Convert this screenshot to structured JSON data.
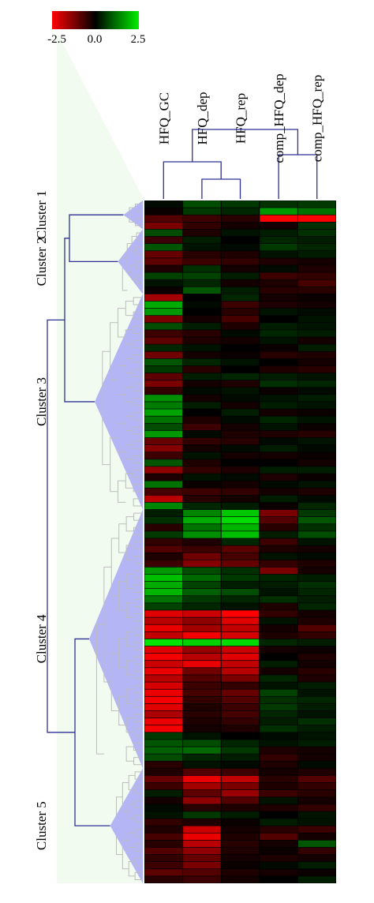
{
  "chart_data": {
    "type": "heatmap",
    "title": "",
    "colorbar": {
      "min": -2.5,
      "max": 2.5,
      "tick_labels": [
        "-2.5",
        "0.0",
        "2.5"
      ],
      "colors": {
        "low": "#ff0000",
        "mid": "#000000",
        "high": "#00ee00"
      }
    },
    "columns": [
      "HFQ_GC",
      "HFQ_dep",
      "HFQ_rep",
      "comp_HFQ_dep",
      "comp_HFQ_rep"
    ],
    "clusters": [
      {
        "label": "Cluster 1",
        "rows": [
          0,
          3
        ]
      },
      {
        "label": "Cluster 2",
        "rows": [
          4,
          12
        ]
      },
      {
        "label": "Cluster 3",
        "rows": [
          13,
          42
        ]
      },
      {
        "label": "Cluster 4",
        "rows": [
          43,
          78
        ]
      },
      {
        "label": "Cluster 5",
        "rows": [
          79,
          94
        ]
      }
    ],
    "values": [
      [
        0.1,
        0.8,
        0.6,
        0.5,
        0.6
      ],
      [
        -0.1,
        0.6,
        0.4,
        1.6,
        1.2
      ],
      [
        -0.8,
        -0.6,
        -0.4,
        -2.5,
        -2.5
      ],
      [
        -1.2,
        -0.5,
        -0.2,
        -0.2,
        0.5
      ],
      [
        0.8,
        -0.3,
        0.2,
        0.3,
        0.5
      ],
      [
        -0.6,
        0.3,
        0.0,
        0.4,
        0.3
      ],
      [
        0.9,
        0.2,
        0.1,
        0.6,
        0.4
      ],
      [
        -1.0,
        -0.4,
        -0.3,
        0.2,
        0.3
      ],
      [
        -0.9,
        -0.6,
        -0.5,
        -0.3,
        -0.2
      ],
      [
        -0.3,
        0.5,
        -0.2,
        0.1,
        -0.3
      ],
      [
        0.7,
        0.7,
        0.3,
        -0.6,
        -0.5
      ],
      [
        0.2,
        0.4,
        -0.2,
        -0.3,
        -0.7
      ],
      [
        -0.1,
        0.9,
        0.3,
        -0.4,
        -0.4
      ],
      [
        -1.6,
        0.0,
        0.4,
        -0.2,
        -0.1
      ],
      [
        1.8,
        0.1,
        -0.6,
        -0.3,
        -0.2
      ],
      [
        1.6,
        0.0,
        -0.4,
        0.2,
        0.1
      ],
      [
        -1.2,
        -0.2,
        -0.7,
        0.0,
        0.2
      ],
      [
        0.8,
        0.3,
        -0.3,
        0.3,
        0.2
      ],
      [
        -0.6,
        -0.4,
        0.1,
        0.4,
        0.3
      ],
      [
        -0.9,
        -0.3,
        -0.2,
        0.2,
        -0.2
      ],
      [
        0.4,
        0.2,
        0.0,
        -0.1,
        0.3
      ],
      [
        -1.1,
        -0.2,
        -0.1,
        -0.4,
        -0.3
      ],
      [
        0.9,
        0.4,
        0.2,
        0.0,
        -0.2
      ],
      [
        0.6,
        -0.4,
        0.0,
        -0.3,
        -0.4
      ],
      [
        -0.9,
        0.3,
        0.4,
        0.3,
        0.2
      ],
      [
        -1.2,
        -0.2,
        -0.3,
        0.5,
        0.4
      ],
      [
        -0.5,
        0.1,
        0.2,
        -0.1,
        0.1
      ],
      [
        1.5,
        -0.2,
        0.1,
        0.2,
        0.3
      ],
      [
        1.3,
        0.3,
        -0.2,
        0.3,
        0.2
      ],
      [
        1.7,
        0.0,
        0.3,
        -0.2,
        -0.1
      ],
      [
        1.2,
        -0.3,
        0.1,
        0.4,
        0.2
      ],
      [
        0.8,
        -0.6,
        -0.2,
        0.2,
        -0.1
      ],
      [
        1.6,
        0.1,
        -0.3,
        -0.3,
        -0.4
      ],
      [
        -1.0,
        -0.5,
        -0.4,
        0.1,
        0.2
      ],
      [
        -1.3,
        -0.2,
        0.1,
        0.3,
        0.1
      ],
      [
        -0.6,
        0.2,
        -0.2,
        -0.2,
        -0.1
      ],
      [
        0.9,
        -0.3,
        0.0,
        0.0,
        -0.2
      ],
      [
        -1.4,
        -0.5,
        -0.3,
        0.3,
        0.3
      ],
      [
        -0.3,
        0.2,
        0.1,
        -0.3,
        -0.1
      ],
      [
        1.2,
        -0.1,
        -0.2,
        0.1,
        0.2
      ],
      [
        -0.7,
        -0.6,
        -0.5,
        -0.2,
        -0.3
      ],
      [
        -1.8,
        -0.4,
        -0.2,
        0.3,
        0.1
      ],
      [
        1.4,
        0.4,
        0.3,
        -0.1,
        0.4
      ],
      [
        0.3,
        1.4,
        2.1,
        -1.2,
        0.6
      ],
      [
        0.5,
        1.8,
        2.3,
        -0.8,
        0.9
      ],
      [
        -0.4,
        1.2,
        1.9,
        -0.4,
        0.5
      ],
      [
        0.6,
        1.5,
        2.0,
        0.3,
        0.8
      ],
      [
        -0.5,
        -0.3,
        0.4,
        -0.6,
        0.2
      ],
      [
        -0.8,
        -0.6,
        -0.9,
        -0.3,
        -0.2
      ],
      [
        -0.3,
        -1.1,
        -0.7,
        0.2,
        0.1
      ],
      [
        -0.6,
        -1.3,
        -1.0,
        -0.5,
        -0.3
      ],
      [
        1.6,
        0.8,
        0.5,
        -1.2,
        -0.2
      ],
      [
        2.0,
        1.1,
        0.6,
        0.4,
        0.3
      ],
      [
        1.8,
        0.7,
        0.3,
        0.3,
        0.5
      ],
      [
        1.9,
        1.0,
        0.8,
        0.2,
        0.4
      ],
      [
        1.2,
        0.6,
        0.4,
        0.5,
        0.3
      ],
      [
        0.7,
        0.4,
        0.2,
        -0.3,
        0.4
      ],
      [
        -2.2,
        -2.0,
        -2.5,
        -0.5,
        -0.2
      ],
      [
        -1.8,
        -1.4,
        -2.2,
        0.2,
        -0.3
      ],
      [
        -2.3,
        -1.6,
        -1.9,
        -0.2,
        -0.8
      ],
      [
        -1.9,
        -2.4,
        -2.1,
        -0.3,
        -0.5
      ],
      [
        2.4,
        2.2,
        2.3,
        0.4,
        0.3
      ],
      [
        -2.2,
        -1.5,
        -2.0,
        -0.2,
        -0.1
      ],
      [
        -2.4,
        -1.8,
        -2.2,
        0.0,
        -0.3
      ],
      [
        -2.0,
        -2.3,
        -1.9,
        0.3,
        -0.2
      ],
      [
        -2.3,
        -1.1,
        -1.8,
        -0.2,
        -0.4
      ],
      [
        -1.8,
        -0.8,
        -1.2,
        0.4,
        -0.3
      ],
      [
        -2.1,
        -0.6,
        -0.5,
        0.2,
        0.3
      ],
      [
        -2.3,
        -0.7,
        -1.0,
        0.7,
        0.2
      ],
      [
        -2.4,
        -0.5,
        -0.8,
        0.5,
        0.4
      ],
      [
        -2.2,
        -0.3,
        -0.6,
        0.6,
        0.3
      ],
      [
        -1.7,
        -0.4,
        -0.7,
        0.4,
        0.2
      ],
      [
        -2.3,
        -0.3,
        -0.5,
        0.3,
        0.5
      ],
      [
        -2.4,
        -0.2,
        -0.3,
        0.5,
        0.3
      ],
      [
        0.6,
        0.2,
        0.0,
        0.1,
        0.2
      ],
      [
        0.9,
        0.8,
        0.4,
        0.2,
        0.3
      ],
      [
        1.0,
        1.1,
        0.6,
        -0.3,
        -0.2
      ],
      [
        0.8,
        0.4,
        0.3,
        -0.5,
        -0.2
      ],
      [
        -0.4,
        0.2,
        0.1,
        -0.3,
        0.1
      ],
      [
        -0.3,
        -0.8,
        -0.6,
        -0.2,
        -0.3
      ],
      [
        -1.0,
        -2.3,
        -1.9,
        -0.4,
        -0.8
      ],
      [
        -0.6,
        -1.6,
        -1.2,
        -0.3,
        -0.5
      ],
      [
        0.3,
        -0.9,
        -1.5,
        -0.6,
        -0.4
      ],
      [
        -0.2,
        -1.4,
        -0.8,
        0.2,
        -0.2
      ],
      [
        0.1,
        -0.4,
        -0.3,
        -0.3,
        -0.5
      ],
      [
        0.2,
        0.6,
        0.3,
        0.0,
        0.2
      ],
      [
        -0.5,
        -0.3,
        -0.1,
        0.3,
        0.2
      ],
      [
        -0.3,
        -2.0,
        -0.2,
        -0.4,
        -0.6
      ],
      [
        -0.7,
        -2.3,
        -0.3,
        -0.8,
        -0.2
      ],
      [
        -0.4,
        -1.8,
        -0.4,
        -0.2,
        0.9
      ],
      [
        -0.8,
        -1.4,
        -0.3,
        -0.1,
        -0.5
      ],
      [
        -0.5,
        -1.0,
        -0.2,
        -0.3,
        -0.2
      ],
      [
        -0.6,
        -1.2,
        -0.1,
        0.1,
        0.3
      ],
      [
        -0.9,
        -0.8,
        -0.3,
        -0.2,
        -0.1
      ],
      [
        -0.4,
        -0.6,
        -0.2,
        0.0,
        0.3
      ]
    ]
  }
}
